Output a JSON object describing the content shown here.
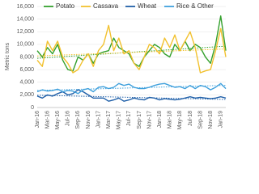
{
  "chart_data": {
    "type": "line",
    "y_label": "Metric tons",
    "categories": [
      "Jan-16",
      null,
      "Mar-16",
      null,
      "May-16",
      null,
      "Jul-16",
      null,
      "Sep-16",
      null,
      "Nov-16",
      null,
      "Jan-17",
      null,
      "Mar-17",
      null,
      "May-17",
      null,
      "Jul-17",
      null,
      "Sep-17",
      null,
      "Nov-17",
      null,
      "Jan-18",
      null,
      "Mar-18",
      null,
      "May-18",
      null,
      "Jul-18",
      null,
      "Sep-18",
      null,
      "Nov-18",
      null,
      "Jan-19",
      null
    ],
    "series": [
      {
        "name": "Potato",
        "color": "#33a02c",
        "values": [
          9000,
          8000,
          9500,
          8500,
          10000,
          7500,
          6000,
          5800,
          8000,
          7500,
          8500,
          7000,
          8500,
          8800,
          9000,
          11000,
          9500,
          9000,
          8500,
          7000,
          6500,
          8000,
          9000,
          10000,
          9500,
          8500,
          8000,
          10000,
          9000,
          10500,
          9000,
          10000,
          9500,
          8000,
          7000,
          10000,
          14500,
          9000
        ]
      },
      {
        "name": "Cassava",
        "color": "#f2c12e",
        "values": [
          7500,
          6500,
          10500,
          9000,
          10500,
          8000,
          7000,
          5500,
          6000,
          7500,
          8500,
          6500,
          9000,
          10000,
          13000,
          9000,
          11000,
          8500,
          9000,
          7000,
          6000,
          8000,
          10000,
          9500,
          8500,
          11000,
          9500,
          11500,
          9000,
          10500,
          12000,
          9500,
          5500,
          5800,
          6000,
          9000,
          12500,
          8000
        ]
      },
      {
        "name": "Wheat",
        "color": "#1f5fa8",
        "values": [
          1800,
          1500,
          2000,
          1800,
          2200,
          2500,
          2000,
          2200,
          2800,
          2500,
          2000,
          1500,
          1500,
          1500,
          1000,
          1200,
          1500,
          1000,
          1200,
          1500,
          1300,
          1200,
          1600,
          1500,
          1200,
          1400,
          1300,
          1200,
          1300,
          1500,
          1700,
          1500,
          1600,
          1500,
          1400,
          1500,
          1700,
          1500
        ]
      },
      {
        "name": "Rice & Other",
        "color": "#3fa0dc",
        "values": [
          2500,
          2800,
          2600,
          2700,
          2900,
          2500,
          2700,
          2600,
          2200,
          2800,
          3000,
          2500,
          3200,
          3300,
          3000,
          3200,
          3800,
          3500,
          3700,
          3200,
          3000,
          3000,
          3200,
          3500,
          3700,
          3800,
          3500,
          3200,
          3300,
          3000,
          3500,
          3000,
          3500,
          3300,
          2800,
          3200,
          3800,
          3000
        ]
      }
    ],
    "ylim": [
      0,
      16000
    ],
    "yticks": [
      0,
      {
        "value": 2000,
        "label": "2,000"
      },
      {
        "value": 4000,
        "label": "4,000"
      },
      {
        "value": 6000,
        "label": "6,000"
      },
      {
        "value": 8000,
        "label": "8,000"
      },
      {
        "value": 10000,
        "label": "10,000"
      },
      {
        "value": 12000,
        "label": "12,000"
      },
      {
        "value": 14000,
        "label": "14,000"
      },
      {
        "value": 16000,
        "label": "16,000"
      }
    ],
    "grid": true,
    "trendline": true
  }
}
